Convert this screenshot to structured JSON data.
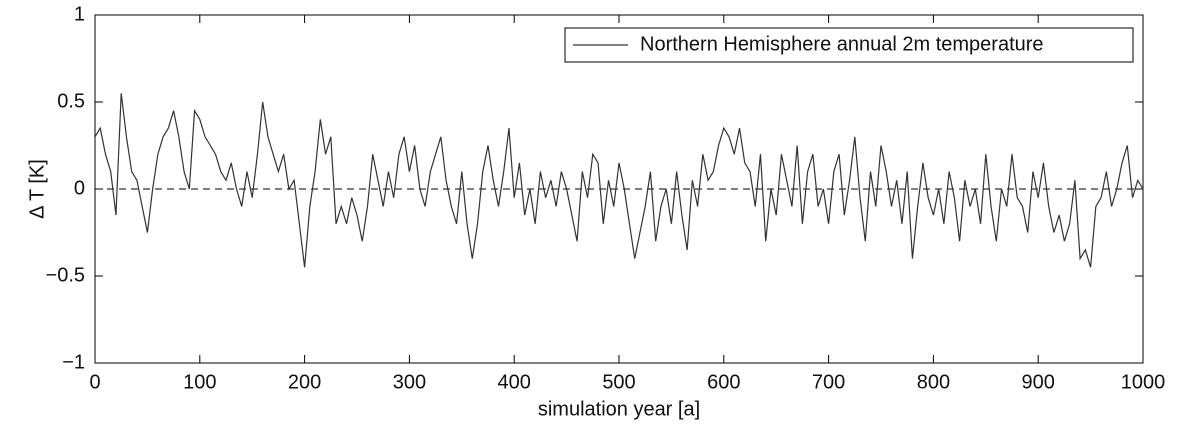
{
  "chart_data": {
    "type": "line",
    "xlabel": "simulation year [a]",
    "ylabel": "Δ T [K]",
    "x": [
      0,
      5,
      10,
      15,
      20,
      25,
      30,
      35,
      40,
      45,
      50,
      55,
      60,
      65,
      70,
      75,
      80,
      85,
      90,
      95,
      100,
      105,
      110,
      115,
      120,
      125,
      130,
      135,
      140,
      145,
      150,
      155,
      160,
      165,
      170,
      175,
      180,
      185,
      190,
      195,
      200,
      205,
      210,
      215,
      220,
      225,
      230,
      235,
      240,
      245,
      250,
      255,
      260,
      265,
      270,
      275,
      280,
      285,
      290,
      295,
      300,
      305,
      310,
      315,
      320,
      325,
      330,
      335,
      340,
      345,
      350,
      355,
      360,
      365,
      370,
      375,
      380,
      385,
      390,
      395,
      400,
      405,
      410,
      415,
      420,
      425,
      430,
      435,
      440,
      445,
      450,
      455,
      460,
      465,
      470,
      475,
      480,
      485,
      490,
      495,
      500,
      505,
      510,
      515,
      520,
      525,
      530,
      535,
      540,
      545,
      550,
      555,
      560,
      565,
      570,
      575,
      580,
      585,
      590,
      595,
      600,
      605,
      610,
      615,
      620,
      625,
      630,
      635,
      640,
      645,
      650,
      655,
      660,
      665,
      670,
      675,
      680,
      685,
      690,
      695,
      700,
      705,
      710,
      715,
      720,
      725,
      730,
      735,
      740,
      745,
      750,
      755,
      760,
      765,
      770,
      775,
      780,
      785,
      790,
      795,
      800,
      805,
      810,
      815,
      820,
      825,
      830,
      835,
      840,
      845,
      850,
      855,
      860,
      865,
      870,
      875,
      880,
      885,
      890,
      895,
      900,
      905,
      910,
      915,
      920,
      925,
      930,
      935,
      940,
      945,
      950,
      955,
      960,
      965,
      970,
      975,
      980,
      985,
      990,
      995,
      1000
    ],
    "series": [
      {
        "name": "Northern Hemisphere annual 2m temperature",
        "color": "#333333",
        "values": [
          0.3,
          0.35,
          0.2,
          0.1,
          -0.15,
          0.55,
          0.3,
          0.1,
          0.05,
          -0.1,
          -0.25,
          0,
          0.2,
          0.3,
          0.35,
          0.45,
          0.3,
          0.1,
          0.0,
          0.45,
          0.4,
          0.3,
          0.25,
          0.2,
          0.1,
          0.05,
          0.15,
          0.0,
          -0.1,
          0.1,
          -0.05,
          0.2,
          0.5,
          0.3,
          0.2,
          0.1,
          0.2,
          0.0,
          0.05,
          -0.2,
          -0.45,
          -0.1,
          0.1,
          0.4,
          0.2,
          0.3,
          -0.2,
          -0.1,
          -0.2,
          -0.05,
          -0.15,
          -0.3,
          -0.1,
          0.2,
          0.05,
          -0.1,
          0.1,
          -0.05,
          0.2,
          0.3,
          0.1,
          0.25,
          0.0,
          -0.1,
          0.1,
          0.2,
          0.3,
          0.05,
          -0.1,
          -0.2,
          0.1,
          -0.2,
          -0.4,
          -0.2,
          0.1,
          0.25,
          0.05,
          -0.1,
          0.1,
          0.35,
          -0.05,
          0.15,
          -0.15,
          0.0,
          -0.2,
          0.1,
          -0.05,
          0.05,
          -0.1,
          0.1,
          0.0,
          -0.15,
          -0.3,
          0.1,
          -0.05,
          0.2,
          0.15,
          -0.2,
          0.05,
          -0.1,
          0.15,
          0.0,
          -0.2,
          -0.4,
          -0.25,
          -0.1,
          0.1,
          -0.3,
          -0.1,
          0.0,
          -0.2,
          0.1,
          -0.15,
          -0.35,
          0.05,
          -0.1,
          0.2,
          0.05,
          0.1,
          0.25,
          0.35,
          0.3,
          0.2,
          0.35,
          0.15,
          0.1,
          -0.1,
          0.2,
          -0.3,
          0.0,
          -0.15,
          0.2,
          0.05,
          -0.1,
          0.25,
          -0.2,
          0.1,
          0.2,
          -0.1,
          0.0,
          -0.2,
          0.1,
          0.2,
          -0.15,
          0.05,
          0.3,
          -0.05,
          -0.3,
          0.1,
          -0.1,
          0.25,
          0.1,
          -0.1,
          0.05,
          -0.2,
          0.1,
          -0.4,
          -0.1,
          0.15,
          -0.05,
          -0.15,
          0.0,
          -0.2,
          0.1,
          -0.05,
          -0.3,
          0.05,
          -0.1,
          0.0,
          -0.2,
          0.2,
          -0.1,
          -0.3,
          0.0,
          -0.1,
          0.2,
          -0.05,
          -0.1,
          -0.25,
          0.1,
          -0.05,
          0.15,
          -0.1,
          -0.25,
          -0.15,
          -0.3,
          -0.2,
          0.05,
          -0.4,
          -0.35,
          -0.45,
          -0.1,
          -0.05,
          0.1,
          -0.1,
          0.0,
          0.15,
          0.25,
          -0.05,
          0.05,
          0.0
        ]
      }
    ],
    "xlim": [
      0,
      1000
    ],
    "xticks": [
      0,
      100,
      200,
      300,
      400,
      500,
      600,
      700,
      800,
      900,
      1000
    ],
    "ylim": [
      -1,
      1
    ],
    "yticks": [
      {
        "value": -1,
        "label": "−1"
      },
      {
        "value": -0.5,
        "label": "−0.5"
      },
      0,
      0.5,
      1
    ],
    "reference_line": {
      "value": 0,
      "style": "dashed"
    },
    "legend_position": "upper right"
  }
}
